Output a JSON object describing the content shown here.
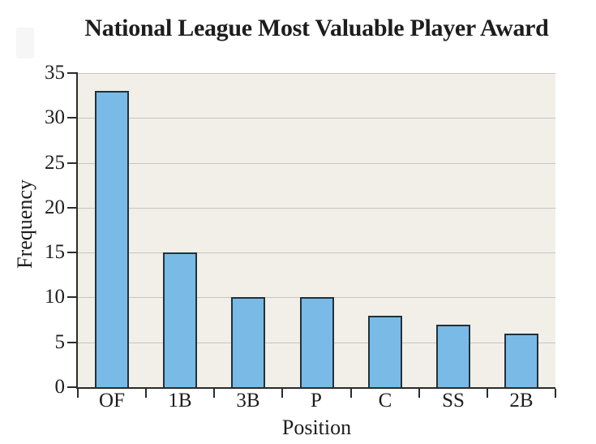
{
  "chart_data": {
    "type": "bar",
    "title": "National League Most Valuable Player Award",
    "xlabel": "Position",
    "ylabel": "Frequency",
    "categories": [
      "OF",
      "1B",
      "3B",
      "P",
      "C",
      "SS",
      "2B"
    ],
    "values": [
      33,
      15,
      10,
      10,
      8,
      7,
      6
    ],
    "ylim": [
      0,
      35
    ],
    "ytick_interval": 5,
    "ytick_labels": [
      "0",
      "5",
      "10",
      "15",
      "20",
      "25",
      "30",
      "35"
    ],
    "grid": "horizontal",
    "legend": "none",
    "colors": {
      "bar_fill": "#79bbe6",
      "bar_border": "#22303c",
      "plot_background": "#f2efe8",
      "gridline": "#c6c5c0",
      "axis": "#2b2b2b",
      "text": "#1d1d1d",
      "page_background": "#ffffff"
    }
  }
}
